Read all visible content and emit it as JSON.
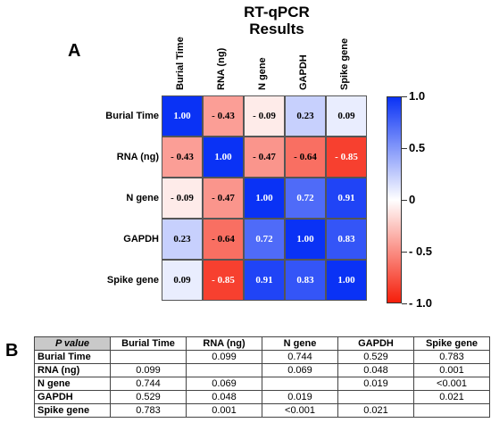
{
  "title_line1": "RT-qPCR",
  "title_line2": "Results",
  "panel_a": "A",
  "panel_b": "B",
  "chart_data": {
    "type": "heatmap",
    "rows": [
      "Burial Time",
      "RNA (ng)",
      "N gene",
      "GAPDH",
      "Spike gene"
    ],
    "columns": [
      "Burial Time",
      "RNA (ng)",
      "N gene",
      "GAPDH",
      "Spike gene"
    ],
    "values": [
      [
        1.0,
        -0.43,
        -0.09,
        0.23,
        0.09
      ],
      [
        -0.43,
        1.0,
        -0.47,
        -0.64,
        -0.85
      ],
      [
        -0.09,
        -0.47,
        1.0,
        0.72,
        0.91
      ],
      [
        0.23,
        -0.64,
        0.72,
        1.0,
        0.83
      ],
      [
        0.09,
        -0.85,
        0.91,
        0.83,
        1.0
      ]
    ],
    "value_labels": [
      [
        "1.00",
        "- 0.43",
        "- 0.09",
        "0.23",
        "0.09"
      ],
      [
        "- 0.43",
        "1.00",
        "- 0.47",
        "- 0.64",
        "- 0.85"
      ],
      [
        "- 0.09",
        "- 0.47",
        "1.00",
        "0.72",
        "0.91"
      ],
      [
        "0.23",
        "- 0.64",
        "0.72",
        "1.00",
        "0.83"
      ],
      [
        "0.09",
        "- 0.85",
        "0.91",
        "0.83",
        "1.00"
      ]
    ],
    "color_range": [
      -1.0,
      1.0
    ],
    "colorbar_ticks": [
      "1.0",
      "0.5",
      "0",
      "- 0.5",
      "- 1.0"
    ],
    "colorbar_tick_values": [
      1.0,
      0.5,
      0,
      -0.5,
      -1.0
    ],
    "colors": {
      "positive": "#0a32f5",
      "neutral": "#ffffff",
      "negative": "#f51e0a"
    }
  },
  "pvalue_table": {
    "corner": "P value",
    "headers": [
      "Burial Time",
      "RNA (ng)",
      "N gene",
      "GAPDH",
      "Spike gene"
    ],
    "rows": [
      {
        "label": "Burial Time",
        "cells": [
          "",
          "0.099",
          "0.744",
          "0.529",
          "0.783"
        ]
      },
      {
        "label": "RNA (ng)",
        "cells": [
          "0.099",
          "",
          "0.069",
          "0.048",
          "0.001"
        ]
      },
      {
        "label": "N gene",
        "cells": [
          "0.744",
          "0.069",
          "",
          "0.019",
          "<0.001"
        ]
      },
      {
        "label": "GAPDH",
        "cells": [
          "0.529",
          "0.048",
          "0.019",
          "",
          "0.021"
        ]
      },
      {
        "label": "Spike gene",
        "cells": [
          "0.783",
          "0.001",
          "<0.001",
          "0.021",
          ""
        ]
      }
    ]
  }
}
